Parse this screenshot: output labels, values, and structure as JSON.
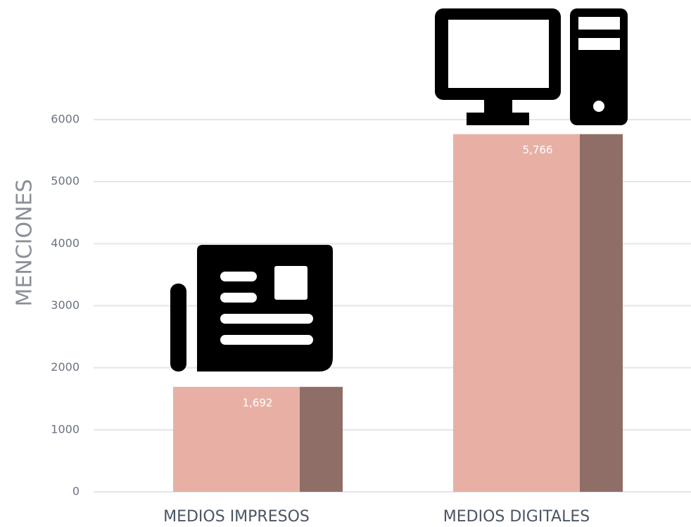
{
  "chart_data": {
    "type": "bar",
    "y_axis_label": "MENCIONES",
    "categories": [
      "MEDIOS IMPRESOS",
      "MEDIOS DIGITALES"
    ],
    "values": [
      1692,
      5766
    ],
    "value_labels": [
      "1,692",
      "5,766"
    ],
    "color": "#e8b0a5",
    "shade_color": "#8f6e68",
    "ylim": [
      0,
      6000
    ],
    "yticks": [
      0,
      1000,
      2000,
      3000,
      4000,
      5000,
      6000
    ],
    "grid": true
  }
}
